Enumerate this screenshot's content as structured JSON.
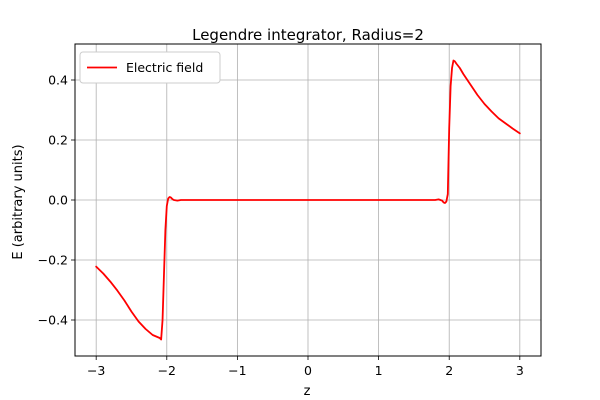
{
  "chart_data": {
    "type": "line",
    "title": "Legendre integrator, Radius=2",
    "xlabel": "z",
    "ylabel": "E (arbitrary units)",
    "xlim": [
      -3.3,
      3.3
    ],
    "ylim": [
      -0.52,
      0.52
    ],
    "xticks": [
      -3,
      -2,
      -1,
      0,
      1,
      2,
      3
    ],
    "xtick_labels": [
      "−3",
      "−2",
      "−1",
      "0",
      "1",
      "2",
      "3"
    ],
    "yticks": [
      -0.4,
      -0.2,
      0.0,
      0.2,
      0.4
    ],
    "ytick_labels": [
      "−0.4",
      "−0.2",
      "0.0",
      "0.2",
      "0.4"
    ],
    "grid": true,
    "legend_position": "top-left",
    "series": [
      {
        "name": "Electric field",
        "color": "#ff0000",
        "x": [
          -3.0,
          -2.9,
          -2.8,
          -2.7,
          -2.6,
          -2.5,
          -2.4,
          -2.3,
          -2.2,
          -2.15,
          -2.1,
          -2.08,
          -2.06,
          -2.04,
          -2.02,
          -2.0,
          -1.98,
          -1.96,
          -1.94,
          -1.92,
          -1.9,
          -1.85,
          -1.8,
          -1.7,
          -1.5,
          -1.0,
          0.0,
          1.0,
          1.5,
          1.7,
          1.8,
          1.85,
          1.9,
          1.92,
          1.94,
          1.96,
          1.98,
          2.0,
          2.02,
          2.04,
          2.06,
          2.08,
          2.1,
          2.15,
          2.2,
          2.3,
          2.4,
          2.5,
          2.6,
          2.7,
          2.8,
          2.9,
          3.0
        ],
        "y": [
          -0.222,
          -0.245,
          -0.272,
          -0.302,
          -0.335,
          -0.372,
          -0.405,
          -0.43,
          -0.45,
          -0.455,
          -0.46,
          -0.465,
          -0.4,
          -0.25,
          -0.1,
          -0.02,
          0.005,
          0.01,
          0.008,
          0.003,
          0.0,
          -0.002,
          0.0,
          0.0,
          0.0,
          0.0,
          0.0,
          0.0,
          0.0,
          0.0,
          0.0,
          0.002,
          -0.002,
          -0.008,
          -0.01,
          -0.005,
          0.02,
          0.24,
          0.38,
          0.44,
          0.465,
          0.462,
          0.455,
          0.44,
          0.42,
          0.385,
          0.35,
          0.32,
          0.295,
          0.272,
          0.255,
          0.238,
          0.222
        ]
      }
    ]
  }
}
